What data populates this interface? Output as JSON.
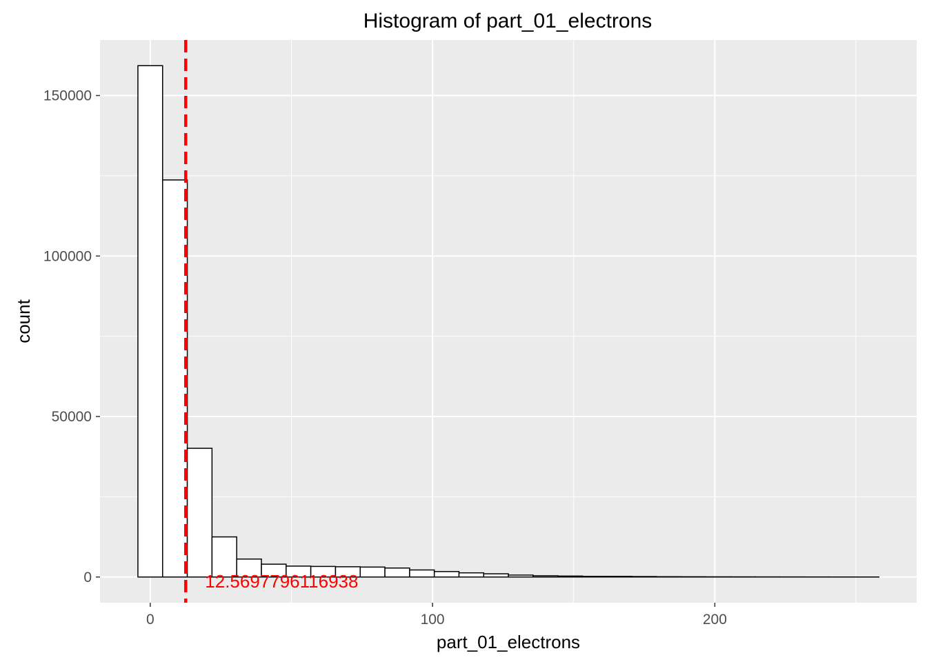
{
  "chart_data": {
    "type": "bar",
    "title": "Histogram of  part_01_electrons",
    "xlabel": "part_01_electrons",
    "ylabel": "count",
    "bin_width": 8.75,
    "bins": [
      {
        "x_center": 0.0,
        "count": 159300
      },
      {
        "x_center": 8.75,
        "count": 123700
      },
      {
        "x_center": 17.5,
        "count": 40100
      },
      {
        "x_center": 26.25,
        "count": 12500
      },
      {
        "x_center": 35.0,
        "count": 5600
      },
      {
        "x_center": 43.75,
        "count": 4000
      },
      {
        "x_center": 52.5,
        "count": 3400
      },
      {
        "x_center": 61.25,
        "count": 3300
      },
      {
        "x_center": 70.0,
        "count": 3200
      },
      {
        "x_center": 78.75,
        "count": 3100
      },
      {
        "x_center": 87.5,
        "count": 2800
      },
      {
        "x_center": 96.25,
        "count": 2200
      },
      {
        "x_center": 105.0,
        "count": 1700
      },
      {
        "x_center": 113.75,
        "count": 1300
      },
      {
        "x_center": 122.5,
        "count": 1000
      },
      {
        "x_center": 131.25,
        "count": 600
      },
      {
        "x_center": 140.0,
        "count": 400
      },
      {
        "x_center": 148.75,
        "count": 300
      },
      {
        "x_center": 157.5,
        "count": 200
      },
      {
        "x_center": 166.25,
        "count": 200
      },
      {
        "x_center": 175.0,
        "count": 150
      },
      {
        "x_center": 183.75,
        "count": 100
      },
      {
        "x_center": 192.5,
        "count": 80
      },
      {
        "x_center": 201.25,
        "count": 60
      },
      {
        "x_center": 210.0,
        "count": 50
      },
      {
        "x_center": 218.75,
        "count": 40
      },
      {
        "x_center": 227.5,
        "count": 30
      },
      {
        "x_center": 236.25,
        "count": 20
      },
      {
        "x_center": 245.0,
        "count": 15
      },
      {
        "x_center": 253.75,
        "count": 10
      }
    ],
    "xlim": [
      -17.8,
      271.5
    ],
    "ylim": [
      -8000,
      167300
    ],
    "x_ticks": [
      0,
      100,
      200
    ],
    "x_tick_labels": [
      "0",
      "100",
      "200"
    ],
    "y_ticks": [
      0,
      50000,
      100000,
      150000
    ],
    "y_tick_labels": [
      "0",
      "50000",
      "100000",
      "150000"
    ],
    "grid": true,
    "mean_line": {
      "x": 12.5697796116938,
      "label": "12.5697796116938",
      "label_y": 0,
      "color": "#ff0000",
      "style": "dashed"
    },
    "colors": {
      "panel_background": "#ebebeb",
      "grid": "#ffffff",
      "bar_fill": "#ffffff",
      "bar_outline": "#000000",
      "tick_text": "#4d4d4d"
    }
  }
}
